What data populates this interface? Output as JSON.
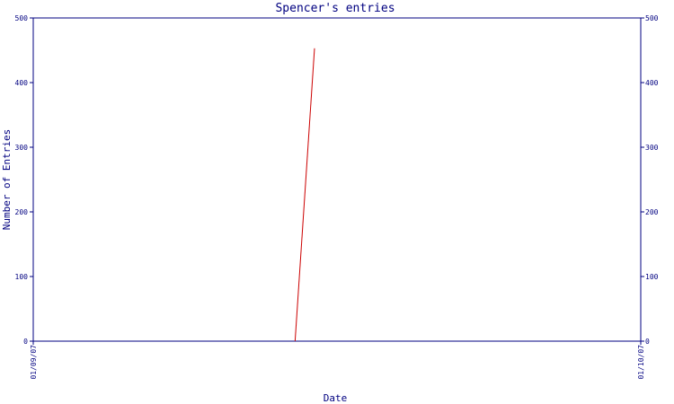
{
  "chart_data": {
    "type": "line",
    "title": "Spencer's entries",
    "xlabel": "Date",
    "ylabel": "Number of Entries",
    "ylim": [
      0,
      500
    ],
    "y_ticks": [
      "0",
      "100",
      "200",
      "300",
      "400",
      "500"
    ],
    "x_tick_labels": [
      "01/09/07",
      "01/10/07"
    ],
    "x_range": [
      0,
      1
    ],
    "grid": false,
    "series": [
      {
        "color": "#cc0000",
        "points": [
          {
            "x": 0.431,
            "y": 0
          },
          {
            "x": 0.463,
            "y": 453
          }
        ]
      }
    ]
  },
  "colors": {
    "axis": "#000080",
    "line": "#cc0000"
  }
}
